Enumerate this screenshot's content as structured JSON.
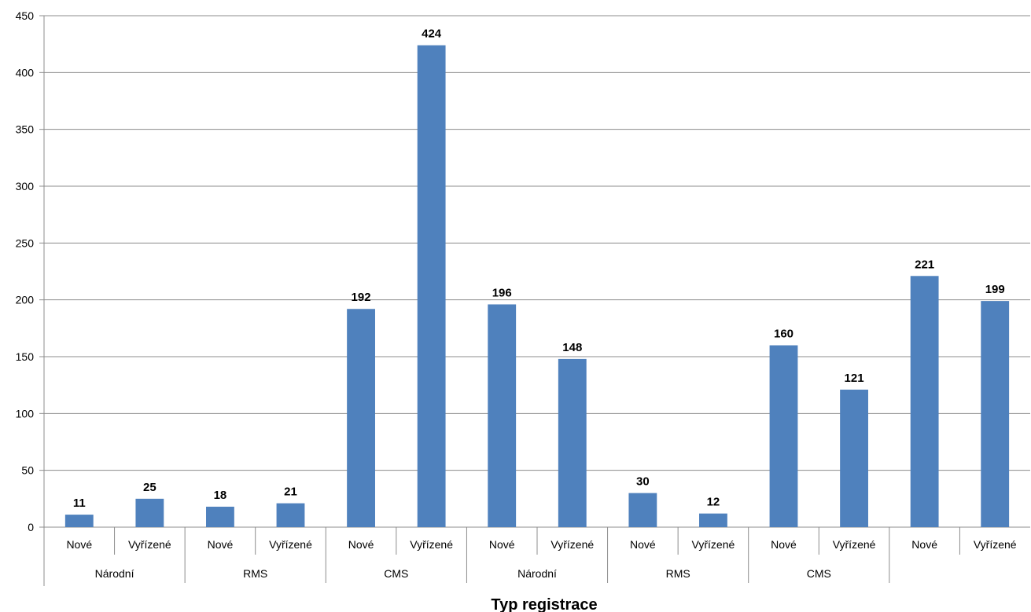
{
  "chart_data": {
    "type": "bar",
    "title": "",
    "xlabel": "Typ registrace",
    "ylabel": "",
    "ylim": [
      0,
      450
    ],
    "yticks": [
      0,
      50,
      100,
      150,
      200,
      250,
      300,
      350,
      400,
      450
    ],
    "grid": true,
    "legend": "none",
    "bar_color": "#4F81BD",
    "categories": [
      "Nové",
      "Vyřízené",
      "Nové",
      "Vyřízené",
      "Nové",
      "Vyřízené",
      "Nové",
      "Vyřízené",
      "Nové",
      "Vyřízené",
      "Nové",
      "Vyřízené",
      "Nové",
      "Vyřízené"
    ],
    "groups": [
      {
        "label": "Národní",
        "count": 2
      },
      {
        "label": "RMS",
        "count": 2
      },
      {
        "label": "CMS",
        "count": 2
      },
      {
        "label": "Národní",
        "count": 2
      },
      {
        "label": "RMS",
        "count": 2
      },
      {
        "label": "CMS",
        "count": 2
      },
      {
        "label": "",
        "count": 2
      }
    ],
    "values": [
      11,
      25,
      18,
      21,
      192,
      424,
      196,
      148,
      30,
      12,
      160,
      121,
      221,
      199
    ]
  }
}
